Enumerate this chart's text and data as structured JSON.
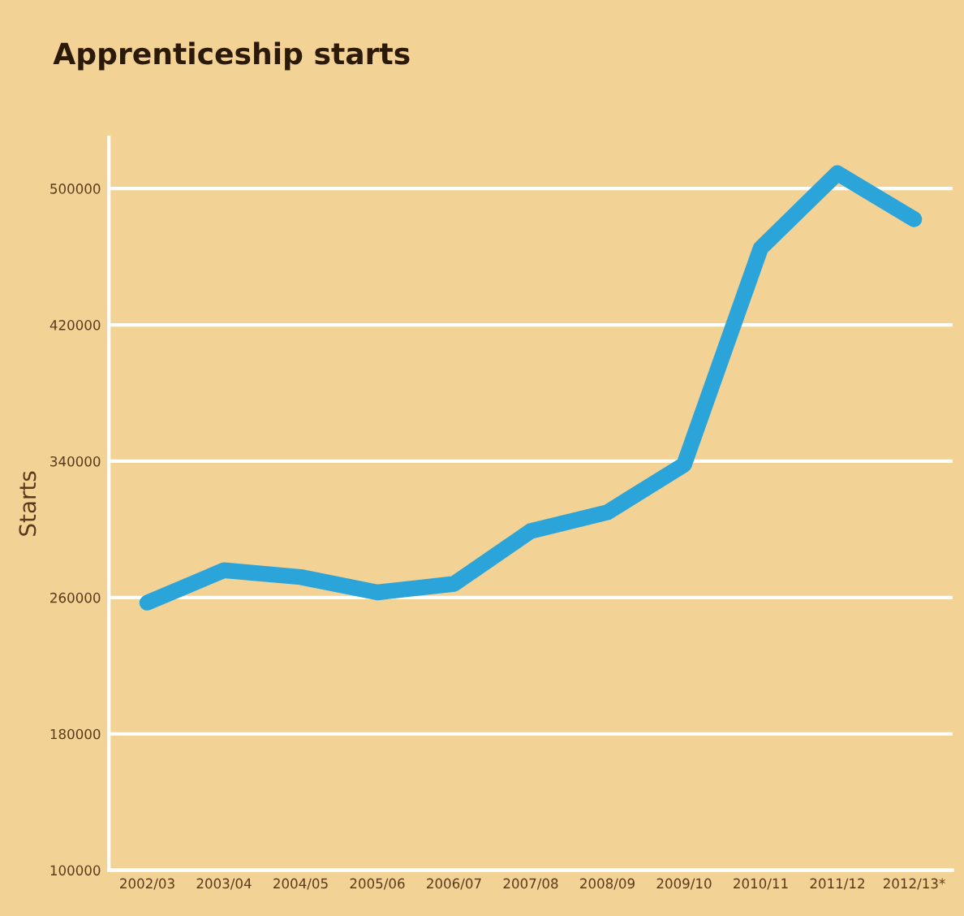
{
  "chart_data": {
    "type": "line",
    "title": "Apprenticeship starts",
    "ylabel": "Starts",
    "categories": [
      "2002/03",
      "2003/04",
      "2004/05",
      "2005/06",
      "2006/07",
      "2007/08",
      "2008/09",
      "2009/10",
      "2010/11",
      "2011/12",
      "2012/13*"
    ],
    "series": [
      {
        "color": "#2ba4da",
        "values": [
          257000,
          276000,
          272000,
          263000,
          268000,
          299000,
          310000,
          338000,
          465000,
          509000,
          482000
        ]
      }
    ],
    "ylim": [
      100000,
      530000
    ],
    "yticks": [
      100000,
      180000,
      260000,
      340000,
      420000,
      500000
    ],
    "grid": "y",
    "legend": false,
    "marker": "none",
    "line_style": "solid"
  }
}
